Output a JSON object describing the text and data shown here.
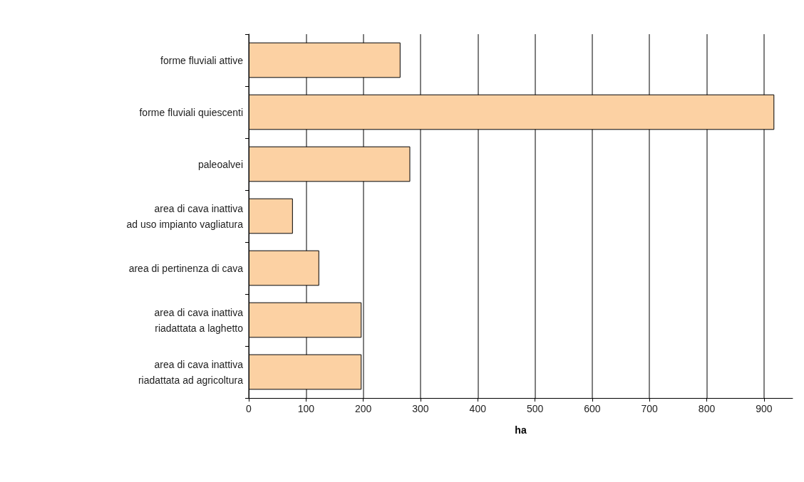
{
  "chart_data": {
    "type": "bar",
    "orientation": "horizontal",
    "xlabel": "ha",
    "categories": [
      "forme fluviali attive",
      "forme fluviali quiescenti",
      "paleoalvei",
      "area di cava inattiva\nad uso impianto vagliatura",
      "area di pertinenza di cava",
      "area di cava inattiva\nriadattata a laghetto",
      "area di cava inattiva\nriadattata ad agricoltura"
    ],
    "values": [
      265,
      918,
      282,
      77,
      123,
      197,
      197
    ],
    "color": "#fcd1a3",
    "xlim": [
      0,
      950
    ],
    "xticks": [
      0,
      100,
      200,
      300,
      400,
      500,
      600,
      700,
      800,
      900
    ],
    "grid": "x"
  }
}
